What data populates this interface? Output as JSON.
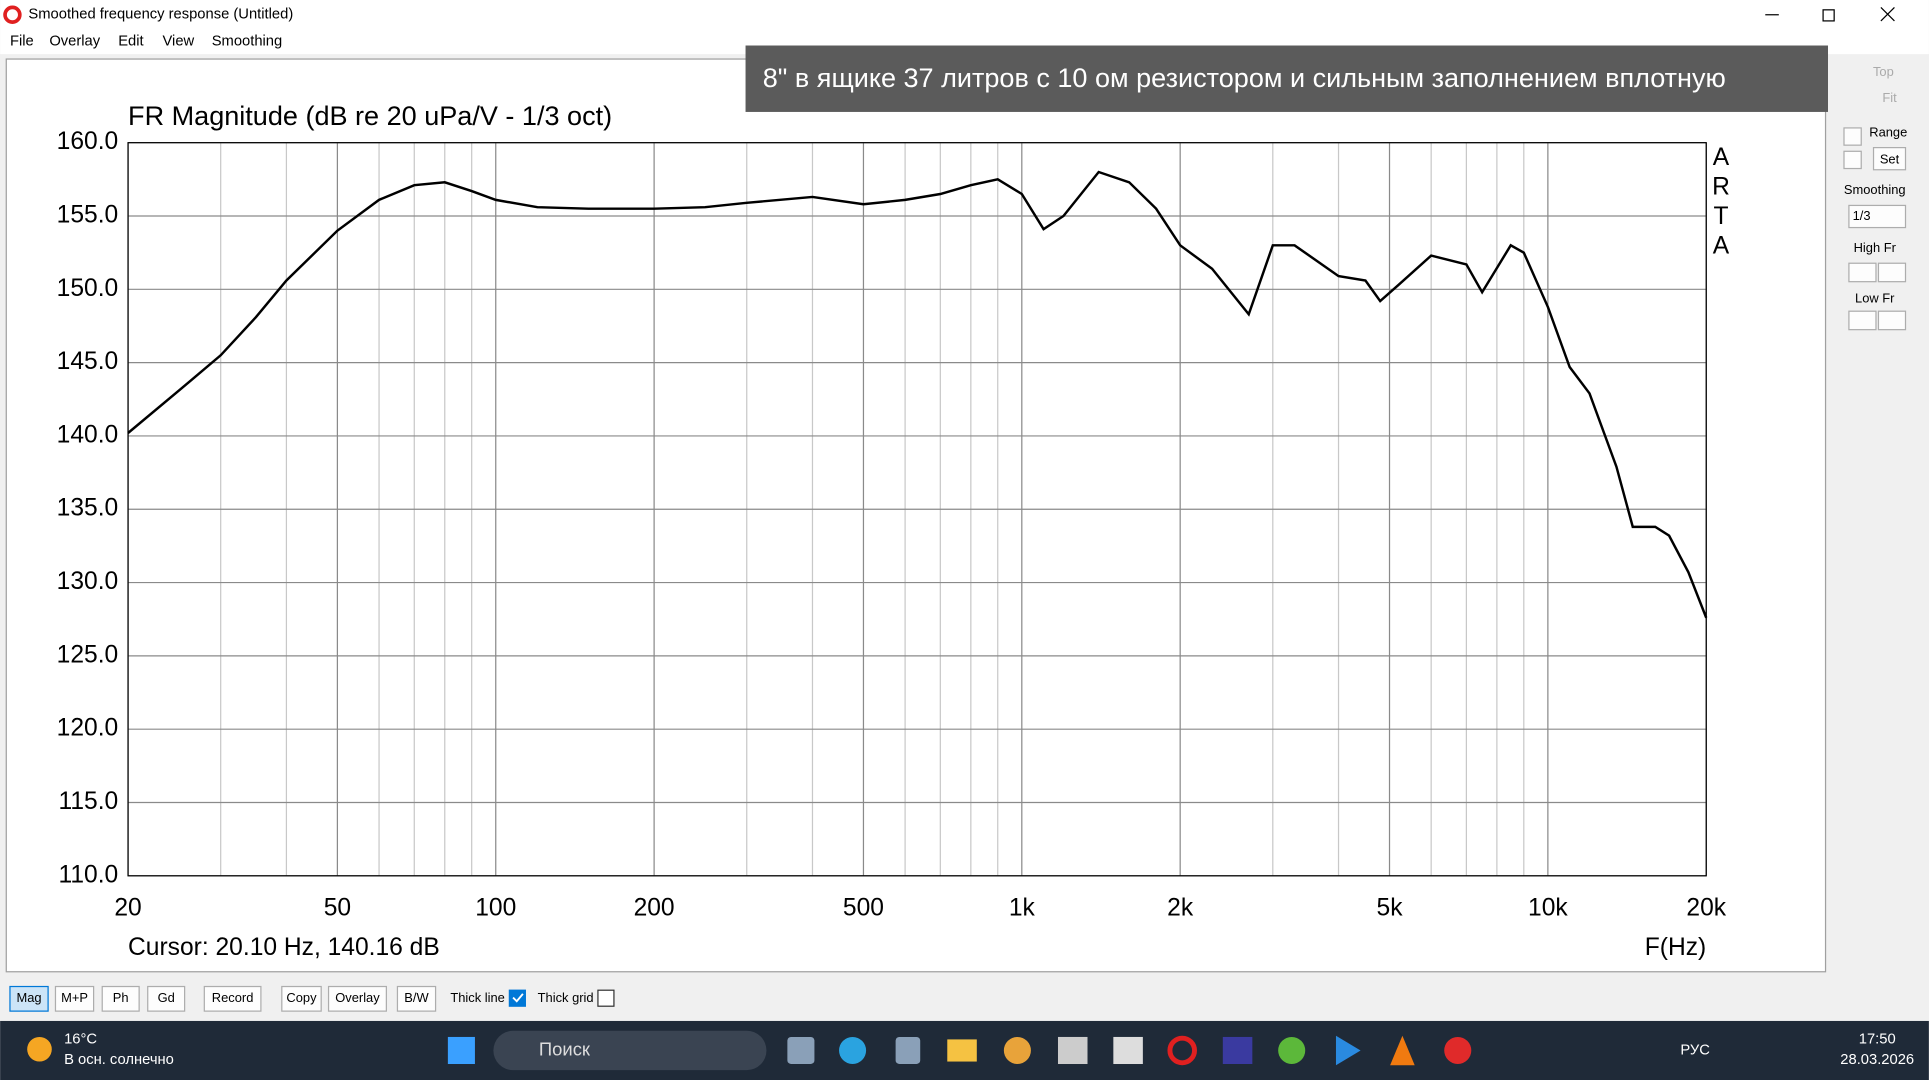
{
  "window": {
    "title": "Smoothed frequency response (Untitled)"
  },
  "menu": [
    "File",
    "Overlay",
    "Edit",
    "View",
    "Smoothing"
  ],
  "caption": "8\" в ящике 37 литров с 10 ом резистором и сильным заполнением вплотную",
  "panel": {
    "top": "Top",
    "fit": "Fit",
    "range": "Range",
    "set": "Set",
    "smoothing": "Smoothing",
    "smoothing_value": "1/3",
    "high_fr": "High Fr",
    "low_fr": "Low Fr"
  },
  "toolbar": {
    "buttons": [
      "Mag",
      "M+P",
      "Ph",
      "Gd",
      "Record",
      "Copy",
      "Overlay",
      "B/W"
    ],
    "thick_line": "Thick line",
    "thick_line_checked": true,
    "thick_grid": "Thick grid",
    "thick_grid_checked": false
  },
  "taskbar": {
    "temp": "16°C",
    "weather": "В осн. солнечно",
    "search": "Поиск",
    "lang": "РУС",
    "time": "17:50",
    "date": "28.03.2026"
  },
  "chart_data": {
    "type": "line",
    "title": "FR Magnitude (dB re 20 uPa/V - 1/3 oct)",
    "x_label": "F(Hz)",
    "cursor": "Cursor: 20.10 Hz, 140.16 dB",
    "watermark": [
      "A",
      "R",
      "T",
      "A"
    ],
    "xscale": "log",
    "color": "#000000",
    "grid": true,
    "x": [
      20,
      25,
      30,
      35,
      40,
      50,
      60,
      70,
      80,
      90,
      100,
      120,
      150,
      200,
      250,
      300,
      400,
      500,
      600,
      700,
      800,
      900,
      1000,
      1100,
      1200,
      1400,
      1600,
      1800,
      2000,
      2300,
      2700,
      3000,
      3300,
      4000,
      4500,
      4800,
      5200,
      6000,
      7000,
      7500,
      8500,
      9000,
      10000,
      11000,
      12000,
      13500,
      14500,
      16000,
      17000,
      18500,
      20000
    ],
    "values": [
      140.2,
      143.1,
      145.5,
      148.1,
      150.6,
      154.0,
      156.1,
      157.1,
      157.3,
      156.7,
      156.1,
      155.6,
      155.5,
      155.5,
      155.6,
      155.9,
      156.3,
      155.8,
      156.1,
      156.5,
      157.1,
      157.5,
      156.5,
      154.1,
      155.0,
      158.0,
      157.3,
      155.5,
      153.0,
      151.4,
      148.3,
      153.0,
      153.0,
      150.9,
      150.6,
      149.2,
      150.3,
      152.3,
      151.7,
      149.8,
      153.0,
      152.5,
      148.8,
      144.7,
      142.9,
      137.9,
      133.8,
      133.8,
      133.2,
      130.7,
      127.6
    ],
    "xlim": [
      20,
      20000
    ],
    "ylim": [
      110,
      160
    ],
    "xticks": [
      20,
      50,
      100,
      200,
      500,
      {
        "value": 1000,
        "label": "1k"
      },
      {
        "value": 2000,
        "label": "2k"
      },
      {
        "value": 5000,
        "label": "5k"
      },
      {
        "value": 10000,
        "label": "10k"
      },
      {
        "value": 20000,
        "label": "20k"
      }
    ],
    "xminor": [
      30,
      40,
      60,
      70,
      80,
      90,
      300,
      400,
      600,
      700,
      800,
      900,
      3000,
      4000,
      6000,
      7000,
      8000,
      9000
    ],
    "yticks": [
      {
        "value": 160,
        "label": "160.0"
      },
      {
        "value": 155,
        "label": "155.0"
      },
      {
        "value": 150,
        "label": "150.0"
      },
      {
        "value": 145,
        "label": "145.0"
      },
      {
        "value": 140,
        "label": "140.0"
      },
      {
        "value": 135,
        "label": "135.0"
      },
      {
        "value": 130,
        "label": "130.0"
      },
      {
        "value": 125,
        "label": "125.0"
      },
      {
        "value": 120,
        "label": "120.0"
      },
      {
        "value": 115,
        "label": "115.0"
      },
      {
        "value": 110,
        "label": "110.0"
      }
    ]
  }
}
